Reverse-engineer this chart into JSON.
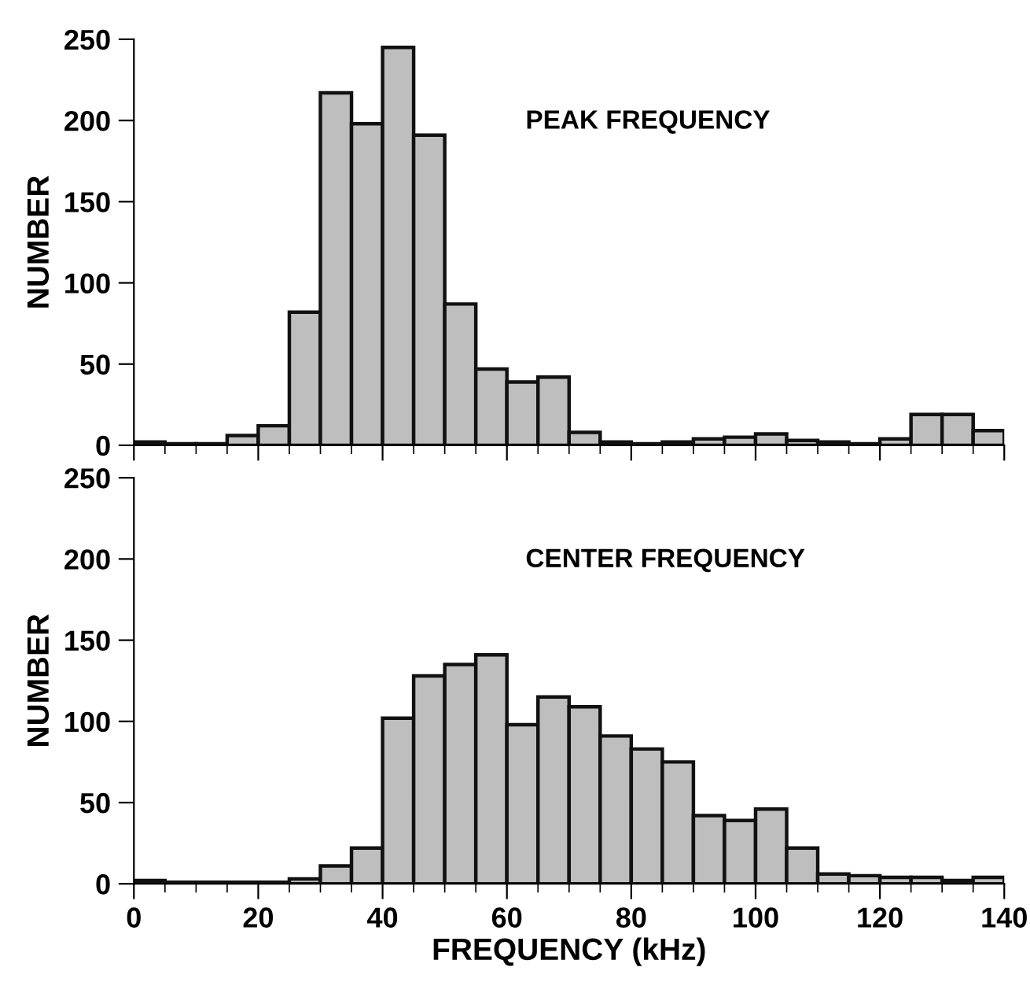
{
  "chart_data": [
    {
      "type": "histogram",
      "ylabel": "NUMBER",
      "annotations": [
        "PEAK FREQUENCY"
      ],
      "color": "#bebebe",
      "tick_labels": "y",
      "grid": false,
      "bins": [
        0,
        5,
        10,
        15,
        20,
        25,
        30,
        35,
        40,
        45,
        50,
        55,
        60,
        65,
        70,
        75,
        80,
        85,
        90,
        95,
        100,
        105,
        110,
        115,
        120,
        125,
        130,
        135,
        140
      ],
      "values": [
        2,
        1,
        1,
        6,
        12,
        82,
        217,
        198,
        245,
        191,
        87,
        47,
        39,
        42,
        8,
        2,
        1,
        2,
        4,
        5,
        7,
        3,
        2,
        1,
        4,
        19,
        19,
        9
      ],
      "xlim": [
        0,
        140
      ],
      "xticks": [
        0,
        20,
        40,
        60,
        80,
        100,
        120,
        140
      ],
      "ylim": [
        0,
        250
      ],
      "yticks": [
        0,
        50,
        100,
        150,
        200,
        250
      ]
    },
    {
      "type": "histogram",
      "ylabel": "NUMBER",
      "xlabel": "FREQUENCY (kHz)",
      "annotations": [
        "CENTER FREQUENCY"
      ],
      "color": "#bebebe",
      "grid": false,
      "bins": [
        0,
        5,
        10,
        15,
        20,
        25,
        30,
        35,
        40,
        45,
        50,
        55,
        60,
        65,
        70,
        75,
        80,
        85,
        90,
        95,
        100,
        105,
        110,
        115,
        120,
        125,
        130,
        135,
        140
      ],
      "values": [
        2,
        1,
        1,
        1,
        1,
        3,
        11,
        22,
        102,
        128,
        135,
        141,
        98,
        115,
        109,
        91,
        83,
        75,
        42,
        39,
        46,
        22,
        6,
        5,
        4,
        4,
        2,
        4
      ],
      "xlim": [
        0,
        140
      ],
      "xticks": [
        0,
        20,
        40,
        60,
        80,
        100,
        120,
        140
      ],
      "ylim": [
        0,
        250
      ],
      "yticks": [
        0,
        50,
        100,
        150,
        200,
        250
      ]
    }
  ]
}
